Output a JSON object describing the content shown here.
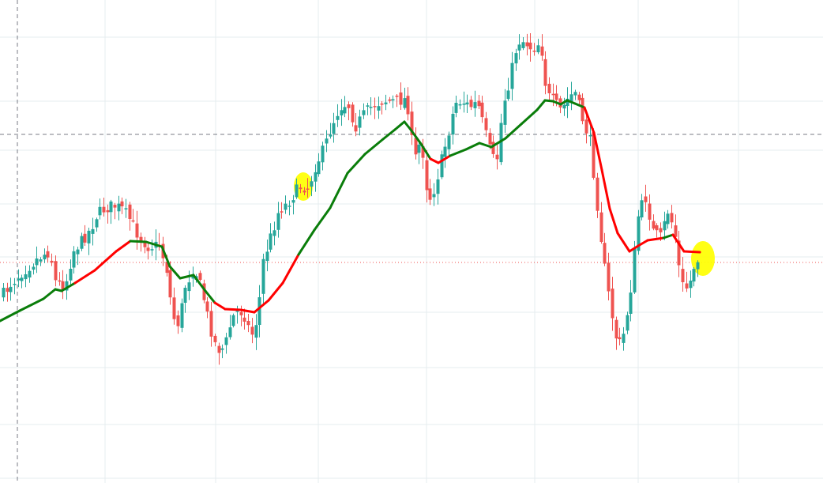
{
  "chart_data": {
    "type": "candlestick",
    "title": "",
    "xlabel": "",
    "ylabel": "",
    "ylim": [
      0,
      611
    ],
    "grid": true,
    "colors": {
      "up": "#26a69a",
      "down": "#ef5350",
      "ma_rising": "#0a7d0a",
      "ma_falling": "#ff0000",
      "highlight": "#ffff00",
      "grid": "#e6ecef",
      "crosshair": "#787b86",
      "price_line": "#ef5350"
    },
    "anchors": [
      [
        4,
        372
      ],
      [
        14,
        358
      ],
      [
        29,
        343
      ],
      [
        44,
        330
      ],
      [
        54,
        322
      ],
      [
        63,
        318
      ],
      [
        70,
        357
      ],
      [
        82,
        362
      ],
      [
        92,
        318
      ],
      [
        103,
        305
      ],
      [
        114,
        290
      ],
      [
        122,
        272
      ],
      [
        133,
        263
      ],
      [
        144,
        260
      ],
      [
        155,
        265
      ],
      [
        166,
        280
      ],
      [
        176,
        300
      ],
      [
        188,
        312
      ],
      [
        202,
        310
      ],
      [
        212,
        345
      ],
      [
        218,
        400
      ],
      [
        226,
        410
      ],
      [
        234,
        362
      ],
      [
        246,
        338
      ],
      [
        256,
        370
      ],
      [
        265,
        410
      ],
      [
        274,
        442
      ],
      [
        284,
        440
      ],
      [
        291,
        412
      ],
      [
        298,
        393
      ],
      [
        308,
        395
      ],
      [
        318,
        425
      ],
      [
        326,
        400
      ],
      [
        333,
        330
      ],
      [
        344,
        295
      ],
      [
        353,
        265
      ],
      [
        363,
        258
      ],
      [
        372,
        245
      ],
      [
        381,
        235
      ],
      [
        390,
        238
      ],
      [
        399,
        210
      ],
      [
        410,
        188
      ],
      [
        420,
        158
      ],
      [
        430,
        135
      ],
      [
        440,
        130
      ],
      [
        450,
        160
      ],
      [
        460,
        145
      ],
      [
        472,
        133
      ],
      [
        485,
        127
      ],
      [
        500,
        128
      ],
      [
        515,
        125
      ],
      [
        524,
        205
      ],
      [
        533,
        175
      ],
      [
        542,
        255
      ],
      [
        550,
        238
      ],
      [
        558,
        205
      ],
      [
        567,
        170
      ],
      [
        576,
        130
      ],
      [
        585,
        128
      ],
      [
        595,
        135
      ],
      [
        604,
        130
      ],
      [
        612,
        160
      ],
      [
        620,
        190
      ],
      [
        628,
        210
      ],
      [
        636,
        135
      ],
      [
        645,
        100
      ],
      [
        655,
        52
      ],
      [
        664,
        52
      ],
      [
        674,
        62
      ],
      [
        684,
        52
      ],
      [
        692,
        120
      ],
      [
        700,
        128
      ],
      [
        710,
        140
      ],
      [
        719,
        125
      ],
      [
        727,
        115
      ],
      [
        737,
        150
      ],
      [
        747,
        180
      ],
      [
        755,
        250
      ],
      [
        764,
        330
      ],
      [
        772,
        385
      ],
      [
        782,
        440
      ],
      [
        790,
        420
      ],
      [
        799,
        360
      ],
      [
        808,
        270
      ],
      [
        817,
        250
      ],
      [
        827,
        295
      ],
      [
        836,
        300
      ],
      [
        846,
        265
      ],
      [
        855,
        300
      ],
      [
        862,
        360
      ],
      [
        871,
        365
      ],
      [
        880,
        330
      ],
      [
        886,
        325
      ]
    ],
    "ma_series": [
      [
        0,
        406
      ],
      [
        25,
        393
      ],
      [
        55,
        378
      ],
      [
        70,
        366
      ],
      [
        78,
        368
      ],
      [
        95,
        358
      ],
      [
        120,
        342
      ],
      [
        147,
        318
      ],
      [
        165,
        305
      ],
      [
        185,
        306
      ],
      [
        205,
        312
      ],
      [
        215,
        337
      ],
      [
        228,
        352
      ],
      [
        245,
        348
      ],
      [
        260,
        368
      ],
      [
        272,
        383
      ],
      [
        285,
        391
      ],
      [
        305,
        392
      ],
      [
        322,
        395
      ],
      [
        340,
        380
      ],
      [
        358,
        358
      ],
      [
        378,
        322
      ],
      [
        398,
        291
      ],
      [
        418,
        263
      ],
      [
        440,
        219
      ],
      [
        462,
        195
      ],
      [
        485,
        176
      ],
      [
        500,
        164
      ],
      [
        512,
        154
      ],
      [
        520,
        164
      ],
      [
        533,
        182
      ],
      [
        545,
        201
      ],
      [
        555,
        206
      ],
      [
        570,
        197
      ],
      [
        590,
        189
      ],
      [
        607,
        181
      ],
      [
        622,
        186
      ],
      [
        640,
        175
      ],
      [
        660,
        157
      ],
      [
        680,
        139
      ],
      [
        690,
        127
      ],
      [
        700,
        128
      ],
      [
        710,
        132
      ],
      [
        718,
        127
      ],
      [
        728,
        131
      ],
      [
        740,
        136
      ],
      [
        752,
        168
      ],
      [
        762,
        215
      ],
      [
        772,
        264
      ],
      [
        782,
        295
      ],
      [
        797,
        318
      ],
      [
        808,
        311
      ],
      [
        820,
        304
      ],
      [
        840,
        301
      ],
      [
        852,
        297
      ],
      [
        866,
        318
      ],
      [
        886,
        319
      ]
    ],
    "red_segments": [
      [
        5,
        8
      ],
      [
        15,
        21
      ],
      [
        31,
        33
      ],
      [
        49,
        53
      ]
    ],
    "highlights": [
      {
        "cx": 384,
        "cy": 236,
        "rx": 12,
        "ry": 18
      },
      {
        "cx": 890,
        "cy": 327,
        "rx": 15,
        "ry": 22
      }
    ],
    "vgrid": [
      133,
      273,
      403,
      540,
      677,
      808,
      935
    ],
    "hgrid": [
      47,
      128,
      190,
      258,
      325,
      395,
      465,
      537,
      605
    ],
    "crosshair": {
      "x": 22,
      "y": 170
    },
    "price_line_y": 332
  }
}
